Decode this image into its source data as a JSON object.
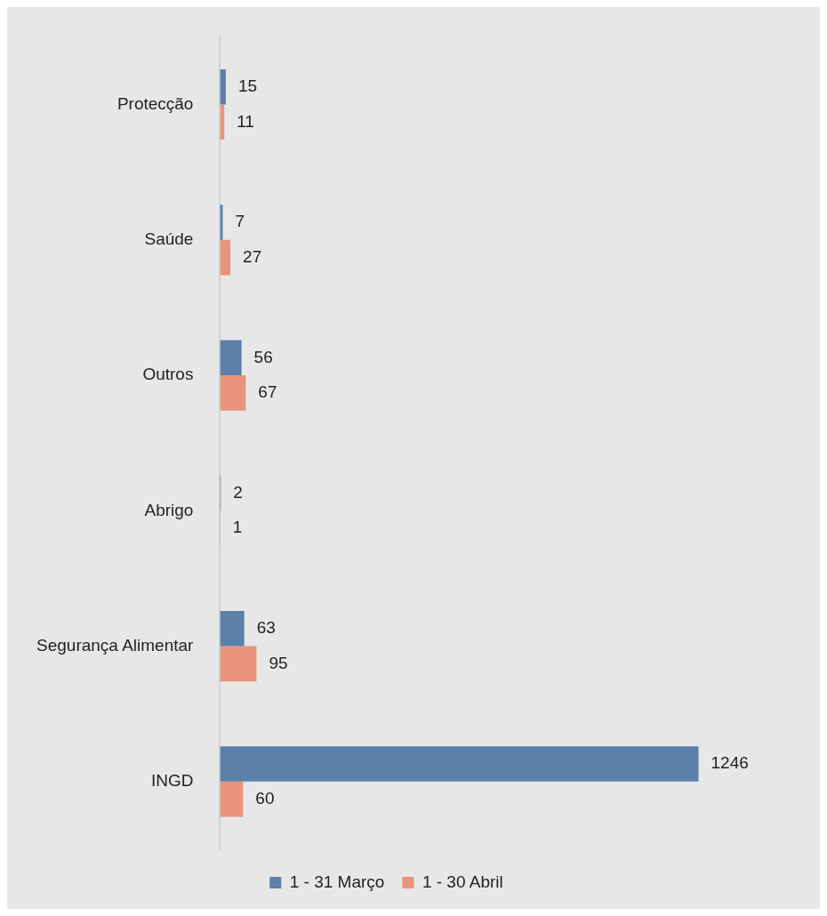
{
  "chart_data": {
    "type": "bar",
    "orientation": "horizontal",
    "categories": [
      "Protecção",
      "Saúde",
      "Outros",
      "Abrigo",
      "Segurança Alimentar",
      "INGD"
    ],
    "series": [
      {
        "name": "1 - 31 Março",
        "color": "#5b80a9",
        "values": [
          15,
          7,
          56,
          2,
          63,
          1246
        ]
      },
      {
        "name": "1 - 30 Abril",
        "color": "#e8957b",
        "values": [
          11,
          27,
          67,
          1,
          95,
          60
        ]
      }
    ],
    "tick_labels": "y",
    "grid": false,
    "legend": "bottom",
    "data_labels": true
  }
}
